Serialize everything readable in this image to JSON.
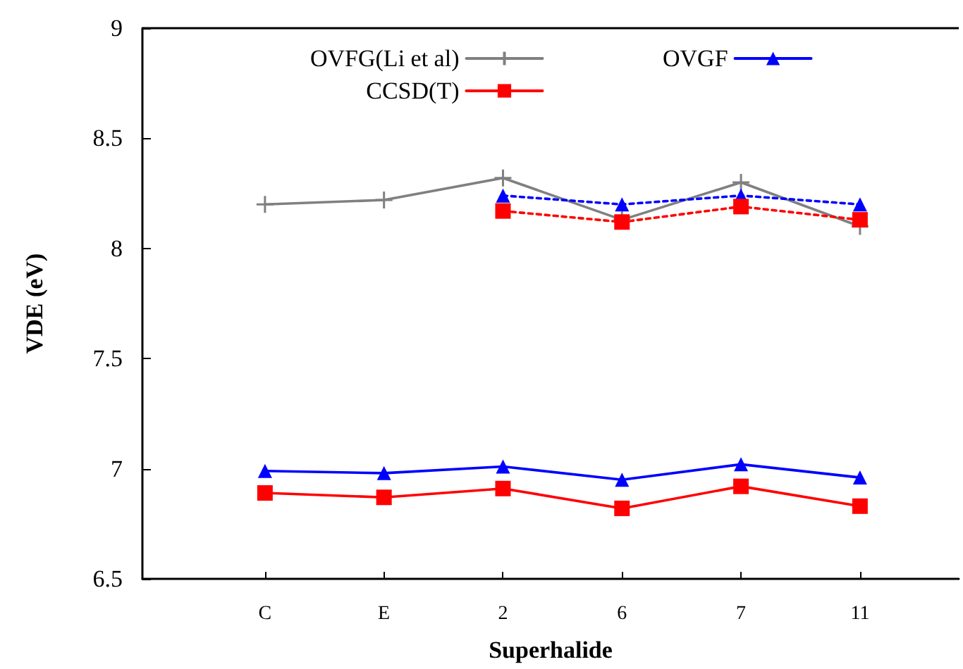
{
  "chart_data": {
    "type": "line",
    "xlabel": "Superhalide",
    "ylabel": "VDE (eV)",
    "categories": [
      "C",
      "E",
      "2",
      "6",
      "7",
      "11"
    ],
    "ylim": [
      6.5,
      9
    ],
    "yticks": [
      6.5,
      7,
      7.5,
      8,
      8.5,
      9
    ],
    "grid": false,
    "legend": "top",
    "series": [
      {
        "name": "OVFG(Li et al)",
        "color": "#808080",
        "marker": "cross",
        "line_style": "solid",
        "values": [
          8.2,
          8.22,
          8.32,
          8.13,
          8.3,
          8.1
        ]
      },
      {
        "name": "OVGF",
        "color": "#0000ff",
        "marker": "triangle",
        "line_style": "solid",
        "values": [
          6.99,
          6.98,
          7.01,
          6.95,
          7.02,
          6.96
        ]
      },
      {
        "name": "CCSD(T)",
        "color": "#ff0000",
        "marker": "square",
        "line_style": "solid",
        "values": [
          6.89,
          6.87,
          6.91,
          6.82,
          6.92,
          6.83
        ]
      },
      {
        "color": "#0000ff",
        "marker": "triangle",
        "line_style": "dashed",
        "values": [
          null,
          null,
          8.24,
          8.2,
          8.24,
          8.2
        ]
      },
      {
        "color": "#ff0000",
        "marker": "square",
        "line_style": "dashed",
        "values": [
          null,
          null,
          8.17,
          8.12,
          8.19,
          8.13
        ]
      }
    ]
  }
}
